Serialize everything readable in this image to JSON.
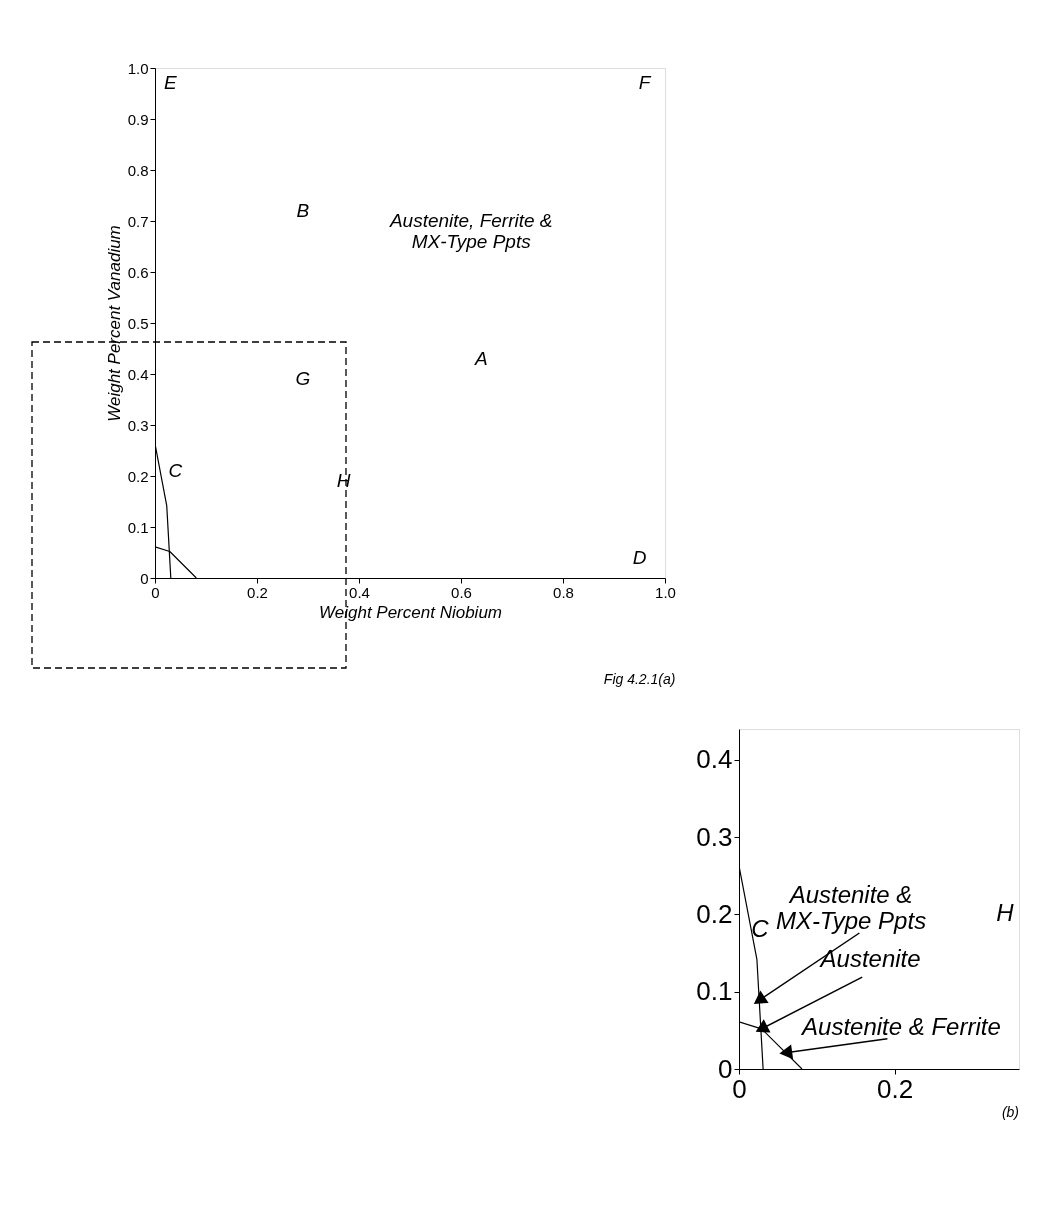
{
  "chart_data": [
    {
      "type": "line",
      "xlabel": "Weight Percent Niobium",
      "ylabel": "Weight Percent Vanadium",
      "xlim": [
        0,
        1
      ],
      "ylim": [
        0,
        1
      ],
      "xticks": [
        0,
        0.2,
        0.4,
        0.6,
        0.8,
        {
          "value": 1,
          "label": "1.0"
        }
      ],
      "yticks": [
        0,
        0.1,
        0.2,
        0.3,
        0.4,
        0.5,
        0.6,
        0.7,
        0.8,
        0.9,
        {
          "value": 1,
          "label": "1.0"
        }
      ],
      "series": [
        {
          "color": "#000000",
          "x": [
            0,
            0.023,
            0.031
          ],
          "values": [
            0.263,
            0.142,
            0
          ]
        },
        {
          "color": "#000000",
          "x": [
            0,
            0.029,
            0.081
          ],
          "values": [
            0.061,
            0.052,
            0
          ]
        }
      ],
      "annotations": [
        "E",
        "F",
        "B",
        "Austenite, Ferrite &\nMX-Type Ppts",
        "G",
        "A",
        "C",
        "H",
        "D",
        "Fig 4.2.1(a)"
      ]
    },
    {
      "type": "line",
      "xlim": [
        0,
        0.36
      ],
      "ylim": [
        0,
        0.44
      ],
      "xticks": [
        0,
        0.2
      ],
      "yticks": [
        0,
        0.1,
        0.2,
        0.3,
        0.4
      ],
      "series": [
        {
          "color": "#000000",
          "x": [
            0,
            0.023,
            0.031
          ],
          "values": [
            0.263,
            0.142,
            0
          ]
        },
        {
          "color": "#000000",
          "x": [
            0,
            0.029,
            0.081
          ],
          "values": [
            0.061,
            0.052,
            0
          ]
        }
      ],
      "annotations": [
        "C",
        "H",
        "Austenite &\nMX-Type Ppts",
        "Austenite",
        "Austenite & Ferrite",
        "(b)"
      ]
    }
  ]
}
